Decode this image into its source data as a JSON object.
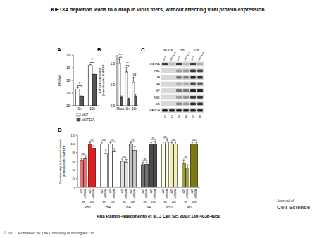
{
  "title": "KIF13A depletion leads to a drop in virus titers, without affecting viral protein expression.",
  "chart_data": [
    {
      "panel": "A",
      "type": "bar",
      "log": "y",
      "y_label": [
        "PFU/mL"
      ],
      "categories": [
        "6h",
        "10h"
      ],
      "series": [
        {
          "name": "siNT",
          "color": "#ffffff",
          "values": [
            200000,
            15000000
          ],
          "errors": [
            60000,
            3000000
          ]
        },
        {
          "name": "siKIF13A",
          "color": "#555555",
          "values": [
            50000,
            3000000
          ],
          "errors": [
            10000,
            700000
          ]
        }
      ],
      "ylim": [
        10000,
        100000000
      ],
      "yticks": [
        {
          "value": 10000,
          "label": "10⁴"
        },
        {
          "value": 100000,
          "label": "10⁵"
        },
        {
          "value": 1000000,
          "label": "10⁶"
        },
        {
          "value": 10000000,
          "label": "10⁷"
        },
        {
          "value": 100000000,
          "label": "10⁸"
        }
      ],
      "annotations": [
        "*",
        "*"
      ],
      "legend": "bottom"
    },
    {
      "panel": "B",
      "type": "bar",
      "y_label": [
        "KIF13A expression",
        "(normalized to GAPDH)"
      ],
      "categories": [
        "Mock",
        "6h",
        "10h"
      ],
      "series": [
        {
          "color": "#ffffff",
          "values": [
            1,
            0.8,
            0.55
          ],
          "errors": [
            0.1,
            0.1,
            0.12
          ]
        },
        {
          "color": "#555555",
          "values": [
            0.2,
            0.15,
            0.22
          ],
          "errors": [
            0.03,
            0.03,
            0.05
          ]
        }
      ],
      "ylim": [
        0,
        1.2
      ],
      "yticks": [
        {
          "value": 0,
          "label": "0.0"
        },
        {
          "value": 0.5,
          "label": "0.5"
        },
        {
          "value": 1,
          "label": "1.0"
        }
      ],
      "annotations": [
        "***",
        "**",
        "ns"
      ]
    },
    {
      "panel": "D",
      "type": "bar",
      "y_label": [
        "Densitometry of indicated proteins",
        "(normalized to GAPDH)"
      ],
      "ylim": [
        0,
        120
      ],
      "yticks": [
        0,
        20,
        40,
        60,
        80,
        100,
        120
      ],
      "bar_labels": [
        "siNT",
        "siKIF13A",
        "siNT",
        "siKIF13A"
      ],
      "time_labels": [
        "6h",
        "10h"
      ],
      "categories": [
        "PB1",
        "HA",
        "NA",
        "NP",
        "NS1",
        "M1"
      ],
      "groups": [
        {
          "colors": [
            "#e87070",
            "#e87070",
            "#e02020",
            "#e02020"
          ],
          "values": [
            62,
            66,
            100,
            90
          ],
          "errors": [
            4,
            5,
            3,
            6
          ],
          "annotations": [
            "ns",
            "ns"
          ]
        },
        {
          "colors": [
            "#ffffff",
            "#ffffff",
            "#ffffff",
            "#ffffff"
          ],
          "values": [
            100,
            78,
            100,
            82
          ],
          "errors": [
            4,
            8,
            3,
            7
          ],
          "annotations": [
            "ns",
            "ns"
          ]
        },
        {
          "colors": [
            "#e0e0e0",
            "#e0e0e0",
            "#c4c4c4",
            "#c4c4c4"
          ],
          "values": [
            60,
            58,
            100,
            85
          ],
          "errors": [
            5,
            6,
            3,
            8
          ],
          "annotations": [
            "ns",
            "ns"
          ]
        },
        {
          "colors": [
            "#707070",
            "#707070",
            "#4a4a4a",
            "#4a4a4a"
          ],
          "values": [
            52,
            53,
            100,
            100
          ],
          "errors": [
            6,
            5,
            3,
            6
          ],
          "annotations": [
            "ns",
            "ns"
          ]
        },
        {
          "colors": [
            "#fffde0",
            "#fffde0",
            "#f2ecb8",
            "#f2ecb8"
          ],
          "values": [
            100,
            105,
            100,
            100
          ],
          "errors": [
            4,
            5,
            3,
            4
          ],
          "annotations": [
            "ns",
            "ns"
          ]
        },
        {
          "colors": [
            "#a0a040",
            "#a0a040",
            "#7a7a10",
            "#7a7a10"
          ],
          "values": [
            55,
            45,
            100,
            100
          ],
          "errors": [
            8,
            7,
            3,
            4
          ],
          "annotations": [
            "ns",
            "ns"
          ]
        }
      ]
    }
  ],
  "blot": {
    "panel": "C",
    "conditions": [
      "MOCK",
      "6h",
      "10h"
    ],
    "lane_labels": [
      "siNT",
      "siKIF13A"
    ],
    "lane_numbers": [
      1,
      2,
      3,
      4,
      5,
      6
    ],
    "rows": [
      "KIF13A",
      "PB1",
      "HA",
      "NA",
      "NP",
      "NS1",
      "M1",
      "GAPDH"
    ],
    "bands": [
      [
        0.8,
        0.15,
        0.8,
        0.15,
        0.8,
        0.2
      ],
      [
        0,
        0,
        0.3,
        0.3,
        0.8,
        0.75
      ],
      [
        0,
        0,
        0.5,
        0.45,
        0.9,
        0.85
      ],
      [
        0,
        0,
        0.2,
        0.2,
        0.7,
        0.6
      ],
      [
        0,
        0,
        0.5,
        0.5,
        0.9,
        0.9
      ],
      [
        0,
        0,
        0.3,
        0.35,
        0.8,
        0.8
      ],
      [
        0,
        0,
        0.4,
        0.3,
        0.85,
        0.85
      ],
      [
        0.9,
        0.9,
        0.9,
        0.9,
        0.9,
        0.9
      ]
    ]
  },
  "citation": "Ana Ramos-Nascimento et al. J Cell Sci 2017;130:4038-4050",
  "journal": [
    "Journal of",
    "Cell Science"
  ],
  "copyright": "© 2017. Published by The Company of Biologists Ltd"
}
